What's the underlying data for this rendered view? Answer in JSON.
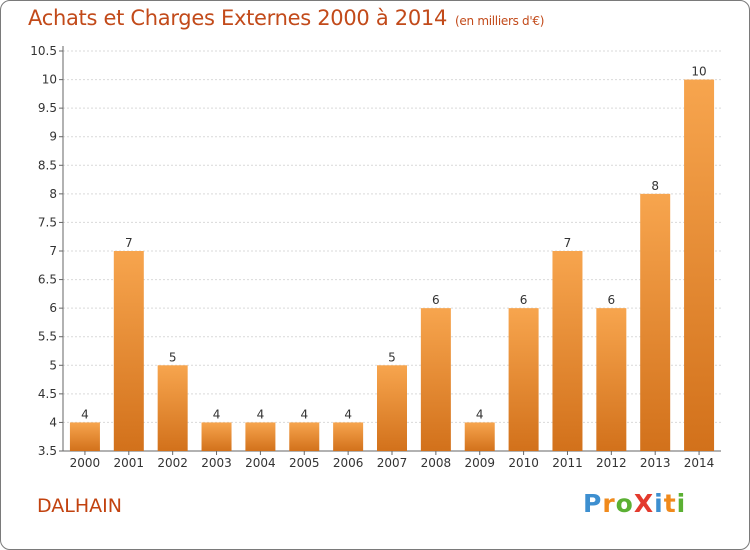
{
  "title": "Achats et Charges Externes 2000 à 2014",
  "title_unit": "(en milliers d'€)",
  "commune": "DALHAIN",
  "logo": {
    "text": "ProXiti",
    "letters": [
      {
        "char": "P",
        "color": "#3d8fd0"
      },
      {
        "char": "r",
        "color": "#f08a1c"
      },
      {
        "char": "o",
        "color": "#5bb033"
      },
      {
        "char": "X",
        "color": "#e33a2d"
      },
      {
        "char": "i",
        "color": "#3d8fd0"
      },
      {
        "char": "t",
        "color": "#f08a1c"
      },
      {
        "char": "i",
        "color": "#5bb033"
      }
    ]
  },
  "colors": {
    "bar_light": "#f7a54e",
    "bar_dark": "#d2711b",
    "grid": "#d9d9d9",
    "axis": "#666666",
    "title": "#c24a1a"
  },
  "chart_data": {
    "type": "bar",
    "title": "Achats et Charges Externes 2000 à 2014",
    "categories": [
      "2000",
      "2001",
      "2002",
      "2003",
      "2004",
      "2005",
      "2006",
      "2007",
      "2008",
      "2009",
      "2010",
      "2011",
      "2012",
      "2013",
      "2014"
    ],
    "values": [
      4,
      7,
      5,
      4,
      4,
      4,
      4,
      5,
      6,
      4,
      6,
      7,
      6,
      8,
      10
    ],
    "value_labels": [
      "4",
      "7",
      "5",
      "4",
      "4",
      "4",
      "4",
      "5",
      "6",
      "4",
      "6",
      "7",
      "6",
      "8",
      "10"
    ],
    "yticks": [
      3.5,
      4,
      4.5,
      5,
      5.5,
      6,
      6.5,
      7,
      7.5,
      8,
      8.5,
      9,
      9.5,
      10,
      10.5
    ],
    "ytick_labels": [
      "3.5",
      "4",
      "4.5",
      "5",
      "5.5",
      "6",
      "6.5",
      "7",
      "7.5",
      "8",
      "8.5",
      "9",
      "9.5",
      "10",
      "10.5"
    ],
    "ylim": [
      3.5,
      10.5
    ],
    "grid": true,
    "xlabel": "",
    "ylabel": ""
  }
}
